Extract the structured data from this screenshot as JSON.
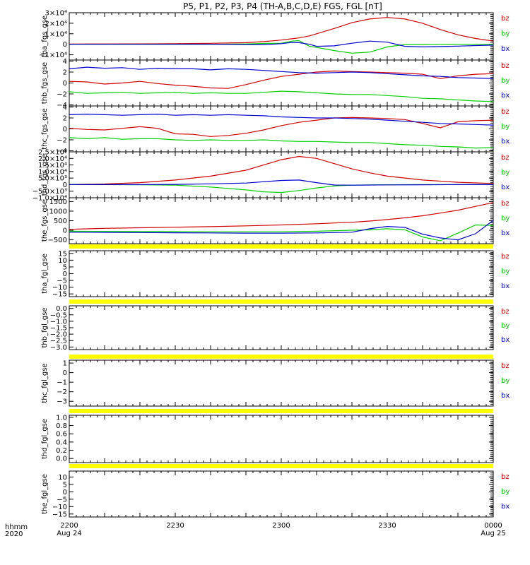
{
  "title": "P5, P1, P2, P3, P4 (TH-A,B,C,D,E) FGS, FGL [nT]",
  "colors": {
    "bz": "#d10000",
    "by": "#00d000",
    "bx": "#0000d0",
    "bar": "#ffff00",
    "axis": "#000000"
  },
  "xaxis": {
    "label_line1": "hhmm",
    "label_line2": "2020",
    "range_minutes": [
      0,
      120
    ],
    "ticks": [
      {
        "minute": 0,
        "label": "2200",
        "sublabel": "Aug 24"
      },
      {
        "minute": 30,
        "label": "2230",
        "sublabel": ""
      },
      {
        "minute": 60,
        "label": "2300",
        "sublabel": ""
      },
      {
        "minute": 90,
        "label": "2330",
        "sublabel": ""
      },
      {
        "minute": 120,
        "label": "0000",
        "sublabel": "Aug 25"
      }
    ]
  },
  "chart_data": [
    {
      "type": "line",
      "ylabel": "tha_fgs_gse",
      "ylim": [
        -15000,
        30000
      ],
      "yticks": [
        {
          "v": 30000,
          "label": "3×10⁴"
        },
        {
          "v": 20000,
          "label": "2×10⁴"
        },
        {
          "v": 10000,
          "label": "1×10⁴"
        },
        {
          "v": 0,
          "label": "0"
        },
        {
          "v": -10000,
          "label": "−1×10⁴"
        }
      ],
      "legend": [
        "bz",
        "by",
        "bx"
      ],
      "x": [
        0,
        10,
        20,
        30,
        40,
        50,
        55,
        60,
        63,
        65,
        68,
        70,
        75,
        80,
        85,
        90,
        95,
        100,
        105,
        110,
        115,
        120
      ],
      "series": [
        {
          "name": "bz",
          "values": [
            200,
            300,
            400,
            600,
            900,
            1500,
            2500,
            4000,
            5200,
            6000,
            8000,
            10000,
            15000,
            20500,
            24000,
            25500,
            24000,
            20000,
            14000,
            9000,
            5500,
            3000
          ]
        },
        {
          "name": "by",
          "values": [
            0,
            0,
            0,
            0,
            0,
            300,
            800,
            1000,
            3000,
            3500,
            -2000,
            -3000,
            -6000,
            -8500,
            -7500,
            -2500,
            -300,
            -200,
            -100,
            0,
            0,
            0
          ]
        },
        {
          "name": "bx",
          "values": [
            0,
            0,
            0,
            0,
            0,
            -300,
            -500,
            600,
            1800,
            1500,
            0,
            -2000,
            -1500,
            1000,
            3000,
            2000,
            -2000,
            -2500,
            -2200,
            -1800,
            -1200,
            -800
          ]
        }
      ]
    },
    {
      "type": "line",
      "ylabel": "thb_fgs_gse",
      "ylim": [
        -4.2,
        4.2
      ],
      "yticks": [
        {
          "v": 4,
          "label": "4"
        },
        {
          "v": 2,
          "label": "2"
        },
        {
          "v": 0,
          "label": "0"
        },
        {
          "v": -2,
          "label": "−2"
        },
        {
          "v": -4,
          "label": "−4"
        }
      ],
      "legend": [
        "bz",
        "by",
        "bx"
      ],
      "x": [
        0,
        5,
        10,
        15,
        20,
        25,
        30,
        35,
        40,
        45,
        50,
        55,
        60,
        65,
        70,
        75,
        80,
        85,
        90,
        95,
        100,
        105,
        110,
        115,
        120
      ],
      "series": [
        {
          "name": "bz",
          "values": [
            0.3,
            0.2,
            -0.2,
            0.0,
            0.3,
            -0.1,
            -0.4,
            -0.6,
            -0.9,
            -1.0,
            -0.3,
            0.5,
            1.2,
            1.6,
            2.0,
            2.2,
            2.1,
            2.0,
            1.9,
            1.8,
            1.6,
            0.8,
            1.3,
            1.6,
            1.7
          ]
        },
        {
          "name": "by",
          "values": [
            -1.6,
            -1.9,
            -1.8,
            -1.7,
            -1.9,
            -1.8,
            -1.7,
            -1.9,
            -1.8,
            -1.9,
            -1.9,
            -1.7,
            -1.5,
            -1.6,
            -1.8,
            -2.0,
            -2.1,
            -2.1,
            -2.3,
            -2.5,
            -2.8,
            -2.9,
            -3.1,
            -3.3,
            -3.4
          ]
        },
        {
          "name": "bx",
          "values": [
            2.6,
            2.9,
            2.7,
            2.8,
            2.5,
            2.7,
            2.6,
            2.6,
            2.4,
            2.6,
            2.5,
            2.3,
            2.1,
            1.9,
            1.8,
            1.9,
            2.0,
            1.9,
            1.7,
            1.5,
            1.3,
            1.2,
            1.0,
            0.9,
            0.8
          ]
        }
      ]
    },
    {
      "type": "line",
      "ylabel": "thc_fgs_gse",
      "ylim": [
        -4.2,
        4.2
      ],
      "yticks": [
        {
          "v": 4,
          "label": "4"
        },
        {
          "v": 2,
          "label": "2"
        },
        {
          "v": 0,
          "label": "0"
        },
        {
          "v": -2,
          "label": "−2"
        },
        {
          "v": -4,
          "label": "−4"
        }
      ],
      "legend": [
        "bz",
        "by",
        "bx"
      ],
      "x": [
        0,
        5,
        10,
        15,
        20,
        25,
        30,
        35,
        40,
        45,
        50,
        55,
        60,
        65,
        70,
        75,
        80,
        85,
        90,
        95,
        100,
        105,
        110,
        115,
        120
      ],
      "series": [
        {
          "name": "bz",
          "values": [
            0.1,
            -0.1,
            -0.2,
            0.1,
            0.4,
            0.1,
            -0.9,
            -1.0,
            -1.4,
            -1.2,
            -0.8,
            -0.2,
            0.6,
            1.2,
            1.6,
            2.0,
            2.1,
            2.0,
            1.9,
            1.7,
            1.0,
            0.2,
            1.3,
            1.5,
            1.6
          ]
        },
        {
          "name": "by",
          "values": [
            -1.6,
            -1.8,
            -1.6,
            -1.9,
            -1.8,
            -1.8,
            -2.0,
            -2.1,
            -2.0,
            -2.1,
            -2.1,
            -2.0,
            -2.2,
            -2.3,
            -2.3,
            -2.4,
            -2.5,
            -2.5,
            -2.7,
            -2.9,
            -3.0,
            -3.2,
            -3.3,
            -3.5,
            -3.4
          ]
        },
        {
          "name": "bx",
          "values": [
            2.6,
            2.7,
            2.6,
            2.5,
            2.6,
            2.7,
            2.5,
            2.6,
            2.5,
            2.6,
            2.5,
            2.4,
            2.2,
            2.1,
            2.0,
            2.0,
            1.9,
            1.8,
            1.6,
            1.4,
            1.2,
            1.0,
            0.9,
            0.8,
            0.7
          ]
        }
      ]
    },
    {
      "type": "line",
      "ylabel": "thd_fgs_gse",
      "ylim": [
        -10000,
        25000
      ],
      "yticks": [
        {
          "v": 25000,
          "label": "2.5×10⁴"
        },
        {
          "v": 20000,
          "label": "2.0×10⁴"
        },
        {
          "v": 15000,
          "label": "1.5×10⁴"
        },
        {
          "v": 10000,
          "label": "1.0×10⁴"
        },
        {
          "v": 5000,
          "label": "5.0×10³"
        },
        {
          "v": 0,
          "label": "0"
        },
        {
          "v": -5000,
          "label": "−5.0×10³"
        },
        {
          "v": -10000,
          "label": "−1.0×10⁴"
        }
      ],
      "legend": [
        "bz",
        "by",
        "bx"
      ],
      "x": [
        0,
        10,
        20,
        30,
        40,
        50,
        55,
        60,
        65,
        70,
        75,
        80,
        85,
        90,
        100,
        110,
        120
      ],
      "series": [
        {
          "name": "bz",
          "values": [
            100,
            500,
            1500,
            3500,
            6500,
            11000,
            15000,
            19000,
            21500,
            20000,
            16000,
            12000,
            9000,
            6500,
            3500,
            1800,
            900
          ]
        },
        {
          "name": "by",
          "values": [
            0,
            0,
            -100,
            -400,
            -1800,
            -4000,
            -5500,
            -6000,
            -4500,
            -2500,
            -1000,
            -400,
            -200,
            -100,
            0,
            0,
            0
          ]
        },
        {
          "name": "bx",
          "values": [
            0,
            0,
            0,
            200,
            600,
            1200,
            2200,
            3200,
            3500,
            1500,
            -300,
            -400,
            -300,
            -200,
            -100,
            0,
            0
          ]
        }
      ]
    },
    {
      "type": "line",
      "ylabel": "the_fgs_gse",
      "ylim": [
        -700,
        1700
      ],
      "yticks": [
        {
          "v": 1500,
          "label": "1500"
        },
        {
          "v": 1000,
          "label": "1000"
        },
        {
          "v": 500,
          "label": "500"
        },
        {
          "v": 0,
          "label": "0"
        },
        {
          "v": -500,
          "label": "−500"
        }
      ],
      "legend": [
        "bz",
        "by",
        "bx"
      ],
      "x": [
        0,
        10,
        20,
        30,
        40,
        50,
        60,
        70,
        80,
        85,
        90,
        95,
        100,
        105,
        110,
        115,
        120
      ],
      "series": [
        {
          "name": "bz",
          "values": [
            50,
            100,
            130,
            160,
            190,
            230,
            280,
            340,
            420,
            480,
            560,
            650,
            760,
            900,
            1050,
            1250,
            1450
          ]
        },
        {
          "name": "by",
          "values": [
            -50,
            -60,
            -70,
            -70,
            -80,
            -80,
            -80,
            -50,
            0,
            20,
            80,
            20,
            -350,
            -550,
            -150,
            280,
            250
          ]
        },
        {
          "name": "bx",
          "values": [
            -100,
            -110,
            -120,
            -130,
            -140,
            -150,
            -150,
            -140,
            -100,
            80,
            200,
            150,
            -200,
            -400,
            -500,
            -180,
            520
          ]
        }
      ]
    },
    {
      "type": "line",
      "ylabel": "tha_fgl_gse",
      "ylim": [
        -17,
        17
      ],
      "yticks": [
        {
          "v": 15,
          "label": "15"
        },
        {
          "v": 10,
          "label": "10"
        },
        {
          "v": 5,
          "label": "5"
        },
        {
          "v": 0,
          "label": "0"
        },
        {
          "v": -5,
          "label": "−5"
        },
        {
          "v": -10,
          "label": "−10"
        },
        {
          "v": -15,
          "label": "−15"
        }
      ],
      "legend": [
        "bz",
        "by",
        "bx"
      ],
      "x": [],
      "series": []
    },
    {
      "type": "line",
      "ylabel": "thb_fgl_gse",
      "ylim": [
        -3.2,
        0.2
      ],
      "yticks": [
        {
          "v": 0,
          "label": "0.0"
        },
        {
          "v": -0.5,
          "label": "−0.5"
        },
        {
          "v": -1.0,
          "label": "−1.0"
        },
        {
          "v": -1.5,
          "label": "−1.5"
        },
        {
          "v": -2.0,
          "label": "−2.0"
        },
        {
          "v": -2.5,
          "label": "−2.5"
        },
        {
          "v": -3.0,
          "label": "−3.0"
        }
      ],
      "legend": [
        "bz",
        "by",
        "bx"
      ],
      "x": [],
      "series": []
    },
    {
      "type": "line",
      "ylabel": "thc_fgl_gse",
      "ylim": [
        -3.5,
        1.3
      ],
      "yticks": [
        {
          "v": 1,
          "label": "1"
        },
        {
          "v": 0,
          "label": "0"
        },
        {
          "v": -1,
          "label": "−1"
        },
        {
          "v": -2,
          "label": "−2"
        },
        {
          "v": -3,
          "label": "−3"
        }
      ],
      "legend": [
        "bz",
        "by",
        "bx"
      ],
      "x": [],
      "series": []
    },
    {
      "type": "line",
      "ylabel": "thd_fgl_gse",
      "ylim": [
        -0.1,
        1.05
      ],
      "yticks": [
        {
          "v": 1.0,
          "label": "1.0"
        },
        {
          "v": 0.8,
          "label": "0.8"
        },
        {
          "v": 0.6,
          "label": "0.6"
        },
        {
          "v": 0.4,
          "label": "0.4"
        },
        {
          "v": 0.2,
          "label": "0.2"
        },
        {
          "v": 0.0,
          "label": "0.0"
        }
      ],
      "legend": [],
      "x": [],
      "series": []
    },
    {
      "type": "line",
      "ylabel": "the_fgl_gse",
      "ylim": [
        -17,
        14
      ],
      "yticks": [
        {
          "v": 10,
          "label": "10"
        },
        {
          "v": 5,
          "label": "5"
        },
        {
          "v": 0,
          "label": "0"
        },
        {
          "v": -5,
          "label": "−5"
        },
        {
          "v": -10,
          "label": "−10"
        },
        {
          "v": -15,
          "label": "−15"
        }
      ],
      "legend": [
        "bz",
        "by",
        "bx"
      ],
      "x": [],
      "series": []
    }
  ]
}
